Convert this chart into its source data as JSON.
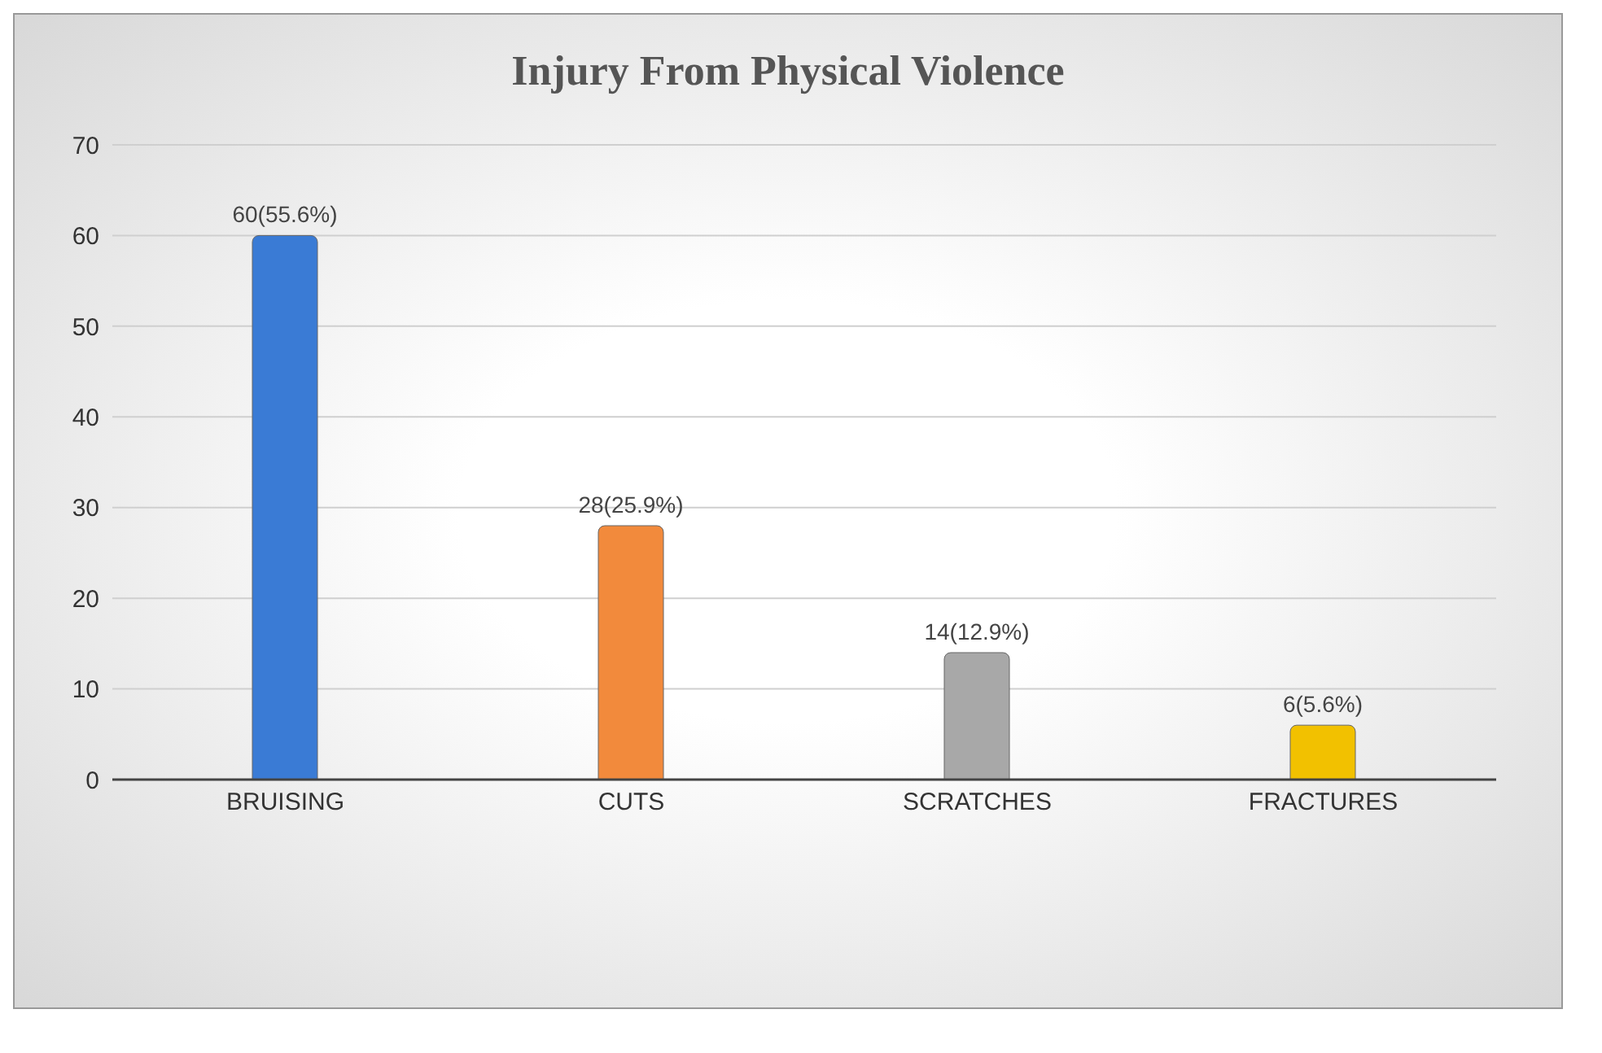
{
  "chart_data": {
    "type": "bar",
    "title": "Injury From Physical Violence",
    "categories": [
      "BRUISING",
      "CUTS",
      "SCRATCHES",
      "FRACTURES"
    ],
    "values": [
      60,
      28,
      14,
      6
    ],
    "colors": [
      "#3a7bd5",
      "#f28a3c",
      "#a8a8a8",
      "#f2c100"
    ],
    "value_labels": [
      "60(55.6%)",
      "28(25.9%)",
      "14(12.9%)",
      "6(5.6%)"
    ],
    "ylim": [
      0,
      70
    ],
    "yticks": [
      0,
      10,
      20,
      30,
      40,
      50,
      60,
      70
    ],
    "grid": "y",
    "legend": false
  }
}
